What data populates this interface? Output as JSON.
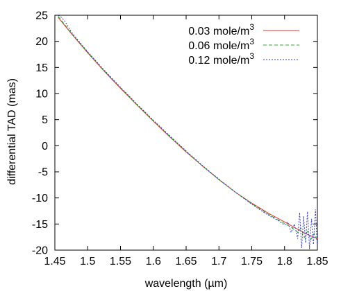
{
  "chart_data": {
    "type": "line",
    "title": "",
    "xlabel": "wavelength (µm)",
    "ylabel": "differential TAD (mas)",
    "xlim": [
      1.45,
      1.85
    ],
    "ylim": [
      -20,
      25
    ],
    "xticks": [
      "1.45",
      "1.5",
      "1.55",
      "1.6",
      "1.65",
      "1.7",
      "1.75",
      "1.8",
      "1.85"
    ],
    "yticks": [
      "25",
      "20",
      "15",
      "10",
      "5",
      "0",
      "-5",
      "-10",
      "-15",
      "-20"
    ],
    "legend_position": "top-right",
    "grid": false,
    "series": [
      {
        "name": "0.03 mole/m3",
        "label_text": "0.03 mole/m",
        "label_sup": "3",
        "color": "#e8322c",
        "style": "solid",
        "x": [
          1.455,
          1.475,
          1.5,
          1.525,
          1.55,
          1.575,
          1.6,
          1.625,
          1.65,
          1.675,
          1.7,
          1.725,
          1.75,
          1.775,
          1.8,
          1.82,
          1.835,
          1.85
        ],
        "y": [
          24.6,
          21.5,
          17.8,
          14.3,
          11.0,
          7.8,
          4.7,
          1.7,
          -1.2,
          -3.9,
          -6.5,
          -8.9,
          -11.0,
          -12.9,
          -14.6,
          -16.0,
          -17.0,
          -17.8
        ]
      },
      {
        "name": "0.06 mole/m3",
        "label_text": "0.06 mole/m",
        "label_sup": "3",
        "color": "#1fb21f",
        "style": "dashed",
        "x": [
          1.455,
          1.475,
          1.5,
          1.525,
          1.55,
          1.575,
          1.6,
          1.625,
          1.65,
          1.675,
          1.7,
          1.725,
          1.75,
          1.775,
          1.8,
          1.81,
          1.82,
          1.825,
          1.83,
          1.835,
          1.84,
          1.845,
          1.85
        ],
        "y": [
          24.8,
          21.6,
          17.9,
          14.4,
          11.1,
          7.9,
          4.8,
          1.8,
          -1.1,
          -3.9,
          -6.5,
          -8.9,
          -11.1,
          -13.1,
          -14.9,
          -15.6,
          -16.6,
          -15.8,
          -17.6,
          -16.4,
          -18.0,
          -16.8,
          -18.3
        ]
      },
      {
        "name": "0.12 mole/m3",
        "label_text": "0.12 mole/m",
        "label_sup": "3",
        "color": "#3434d8",
        "style": "dotted",
        "x": [
          1.455,
          1.46,
          1.465,
          1.475,
          1.5,
          1.525,
          1.55,
          1.575,
          1.6,
          1.625,
          1.65,
          1.675,
          1.7,
          1.725,
          1.75,
          1.775,
          1.79,
          1.8,
          1.805,
          1.81,
          1.815,
          1.82,
          1.823,
          1.826,
          1.829,
          1.832,
          1.835,
          1.838,
          1.841,
          1.844,
          1.847,
          1.85
        ],
        "y": [
          25.0,
          24.6,
          23.9,
          21.8,
          18.0,
          14.5,
          11.2,
          8.0,
          4.9,
          1.9,
          -1.0,
          -3.8,
          -6.4,
          -8.9,
          -11.2,
          -13.3,
          -14.3,
          -15.2,
          -14.6,
          -16.6,
          -15.0,
          -17.8,
          -12.8,
          -19.6,
          -13.5,
          -18.6,
          -12.6,
          -19.8,
          -14.0,
          -18.9,
          -12.2,
          -19.5
        ]
      }
    ]
  }
}
